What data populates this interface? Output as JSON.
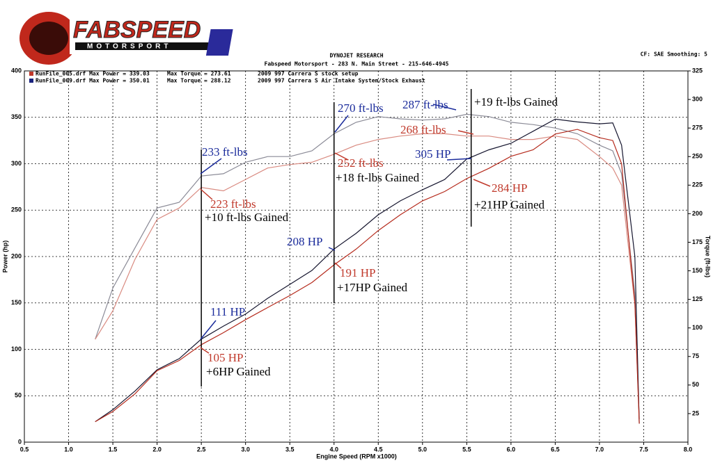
{
  "logo": {
    "name": "FABSPEED",
    "sub": "MOTORSPORT"
  },
  "header": {
    "title": "DYNOJET RESEARCH",
    "address": "Fabspeed Motorsport - 283 N. Main Street - 215-646-4945",
    "settings": "CF: SAE Smoothing: 5"
  },
  "legend": [
    {
      "file": "RunFile_005.drf Max Power = 339.03",
      "torque": "Max Torque = 273.61",
      "setup": "2009 997 Carrera S stock setup",
      "color": "#c0392b"
    },
    {
      "file": "RunFile_009.drf Max Power = 350.01",
      "torque": "Max Torque = 288.12",
      "setup": "2009 997 Carrera S Air Intake System/Stock Exhaust",
      "color": "#1a237e"
    }
  ],
  "chart_data": {
    "type": "line",
    "xlabel": "Engine Speed (RPM x1000)",
    "ylabel": "Power (hp)",
    "y2label": "Torque (ft-lbs)",
    "x": [
      1.3,
      1.5,
      1.75,
      2,
      2.25,
      2.5,
      2.75,
      3,
      3.25,
      3.5,
      3.75,
      4,
      4.25,
      4.5,
      4.75,
      5,
      5.25,
      5.5,
      5.75,
      6,
      6.25,
      6.5,
      6.75,
      7,
      7.15,
      7.25,
      7.4,
      7.45
    ],
    "series": [
      {
        "color": "#b52a1c",
        "values": [
          22,
          33,
          52,
          77,
          88,
          105,
          118,
          132,
          145,
          158,
          172,
          191,
          208,
          228,
          245,
          260,
          270,
          284,
          295,
          308,
          315,
          332,
          337,
          328,
          325,
          300,
          150,
          20
        ]
      },
      {
        "color": "#15152e",
        "values": [
          22,
          35,
          55,
          78,
          90,
          111,
          125,
          138,
          155,
          170,
          185,
          208,
          225,
          245,
          260,
          272,
          283,
          305,
          315,
          322,
          335,
          348,
          345,
          343,
          344,
          320,
          200,
          20
        ]
      },
      {
        "color": "#d98a80",
        "axis": "y2",
        "values": [
          90,
          115,
          160,
          195,
          205,
          223,
          220,
          230,
          240,
          243,
          245,
          252,
          260,
          265,
          268,
          270,
          270,
          268,
          268,
          265,
          265,
          268,
          265,
          250,
          240,
          225,
          120,
          20
        ]
      },
      {
        "color": "#8a8a96",
        "axis": "y2",
        "values": [
          90,
          135,
          170,
          205,
          210,
          233,
          235,
          245,
          250,
          250,
          255,
          270,
          280,
          285,
          283,
          282,
          283,
          287,
          285,
          280,
          278,
          275,
          270,
          260,
          255,
          235,
          130,
          20
        ]
      }
    ],
    "xlim": [
      0.5,
      8
    ],
    "xticks": [
      0.5,
      {
        "value": 1,
        "label": "1.0"
      },
      1.5,
      {
        "value": 2,
        "label": "2.0"
      },
      2.5,
      {
        "value": 3,
        "label": "3.0"
      },
      3.5,
      {
        "value": 4,
        "label": "4.0"
      },
      4.5,
      {
        "value": 5,
        "label": "5.0"
      },
      5.5,
      {
        "value": 6,
        "label": "6.0"
      },
      6.5,
      {
        "value": 7,
        "label": "7.0"
      },
      7.5,
      {
        "value": 8,
        "label": "8.0"
      }
    ],
    "ylim": [
      0,
      400
    ],
    "yticks": [
      0,
      50,
      100,
      150,
      200,
      250,
      300,
      350,
      400
    ],
    "y2lim": [
      0,
      325
    ],
    "y2ticks": [
      25,
      50,
      75,
      100,
      125,
      150,
      175,
      200,
      225,
      250,
      275,
      300,
      325
    ],
    "grid": true,
    "reference_lines_x": [
      2.5,
      4,
      5.55
    ],
    "annotations": [
      {
        "text": "233 ft-lbs",
        "color": "#1a2b9b"
      },
      {
        "text": "270 ft-lbs",
        "color": "#1a2b9b"
      },
      {
        "text": "287 ft-lbs",
        "color": "#1a2b9b"
      },
      {
        "text": "+19 ft-lbs Gained",
        "color": "#000000"
      },
      {
        "text": "268 ft-lbs",
        "color": "#c0392b"
      },
      {
        "text": "252 ft-lbs",
        "color": "#c0392b"
      },
      {
        "text": "+18 ft-lbs Gained",
        "color": "#000000"
      },
      {
        "text": "305 HP",
        "color": "#1a2b9b"
      },
      {
        "text": "284 HP",
        "color": "#c0392b"
      },
      {
        "text": "+21HP Gained",
        "color": "#000000"
      },
      {
        "text": "223 ft-lbs",
        "color": "#c0392b"
      },
      {
        "text": "+10 ft-lbs Gained",
        "color": "#000000"
      },
      {
        "text": "208 HP",
        "color": "#1a2b9b"
      },
      {
        "text": "191 HP",
        "color": "#c0392b"
      },
      {
        "text": "+17HP Gained",
        "color": "#000000"
      },
      {
        "text": "111 HP",
        "color": "#1a2b9b"
      },
      {
        "text": "105 HP",
        "color": "#c0392b"
      },
      {
        "text": "+6HP Gained",
        "color": "#000000"
      }
    ]
  }
}
